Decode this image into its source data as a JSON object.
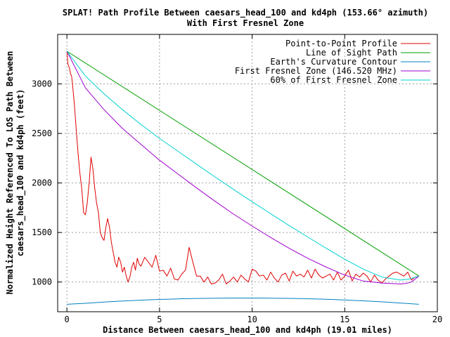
{
  "chart_data": {
    "type": "line",
    "title": "SPLAT! Path Profile Between caesars_head_100 and kd4ph (153.66° azimuth)",
    "subtitle": "With First Fresnel Zone",
    "xlabel": "Distance Between caesars_head_100 and kd4ph (19.01 miles)",
    "ylabel_lines": [
      "Normalized Height Referenced To LOS Path Between",
      "caesars_head_100 and kd4ph (feet)"
    ],
    "xlim": [
      -0.5,
      20
    ],
    "ylim": [
      700,
      3500
    ],
    "x_ticks": [
      0,
      5,
      10,
      15,
      20
    ],
    "y_ticks": [
      1000,
      1500,
      2000,
      2500,
      3000
    ],
    "grid": true,
    "legend_position": "top-right",
    "series": [
      {
        "name": "Point-to-Point Profile",
        "color": "#e00000",
        "x": [
          0,
          0.05,
          0.1,
          0.15,
          0.2,
          0.25,
          0.3,
          0.4,
          0.5,
          0.6,
          0.7,
          0.8,
          0.9,
          1.0,
          1.1,
          1.2,
          1.3,
          1.4,
          1.5,
          1.6,
          1.7,
          1.8,
          1.9,
          2.0,
          2.1,
          2.2,
          2.3,
          2.4,
          2.5,
          2.6,
          2.7,
          2.8,
          2.9,
          3.0,
          3.1,
          3.2,
          3.3,
          3.4,
          3.5,
          3.6,
          3.7,
          3.8,
          3.9,
          4.0,
          4.2,
          4.4,
          4.6,
          4.8,
          5.0,
          5.2,
          5.4,
          5.6,
          5.8,
          6.0,
          6.2,
          6.4,
          6.6,
          6.8,
          7.0,
          7.2,
          7.4,
          7.6,
          7.8,
          8.0,
          8.2,
          8.4,
          8.6,
          8.8,
          9.0,
          9.2,
          9.4,
          9.6,
          9.8,
          10.0,
          10.2,
          10.4,
          10.6,
          10.8,
          11.0,
          11.2,
          11.4,
          11.6,
          11.8,
          12.0,
          12.2,
          12.4,
          12.6,
          12.8,
          13.0,
          13.2,
          13.4,
          13.6,
          13.8,
          14.0,
          14.2,
          14.4,
          14.6,
          14.8,
          15.0,
          15.2,
          15.4,
          15.6,
          15.8,
          16.0,
          16.2,
          16.4,
          16.6,
          16.8,
          17.0,
          17.2,
          17.4,
          17.6,
          17.8,
          18.0,
          18.2,
          18.4,
          18.6,
          18.8,
          19.0
        ],
        "values": [
          3330,
          3200,
          3180,
          3150,
          3100,
          3080,
          3000,
          2800,
          2550,
          2300,
          2100,
          1950,
          1700,
          1680,
          1800,
          2000,
          2260,
          2150,
          1950,
          1800,
          1700,
          1500,
          1450,
          1420,
          1550,
          1640,
          1550,
          1400,
          1300,
          1200,
          1150,
          1250,
          1200,
          1100,
          1150,
          1060,
          1000,
          1050,
          1150,
          1200,
          1120,
          1240,
          1180,
          1160,
          1250,
          1200,
          1150,
          1270,
          1110,
          1120,
          1060,
          1140,
          1030,
          1020,
          1080,
          1120,
          1350,
          1200,
          1060,
          1060,
          1000,
          1050,
          980,
          990,
          1020,
          1080,
          980,
          1010,
          1050,
          1000,
          1070,
          1030,
          1000,
          1130,
          1110,
          1060,
          1070,
          1020,
          1100,
          1040,
          1000,
          1070,
          1090,
          1010,
          1110,
          1060,
          1080,
          1050,
          1120,
          1040,
          1130,
          1070,
          1040,
          1060,
          1080,
          1020,
          1100,
          1020,
          1060,
          1120,
          1010,
          1080,
          1050,
          1090,
          1060,
          1000,
          1070,
          1020,
          990,
          1030,
          1060,
          1090,
          1100,
          1080,
          1060,
          1100,
          1020,
          1050,
          1060
        ]
      },
      {
        "name": "Line of Sight Path",
        "color": "#00a000",
        "x": [
          0,
          19.01
        ],
        "values": [
          3330,
          1060
        ]
      },
      {
        "name": "Earth's Curvature Contour",
        "color": "#0080c0",
        "x": [
          0,
          1,
          2,
          3,
          4,
          5,
          6,
          7,
          8,
          9,
          10,
          11,
          12,
          13,
          14,
          15,
          16,
          17,
          18,
          19
        ],
        "values": [
          775,
          785,
          797,
          808,
          817,
          824,
          830,
          834,
          837,
          838,
          838,
          837,
          835,
          831,
          826,
          819,
          810,
          800,
          788,
          775
        ]
      },
      {
        "name": "First Fresnel Zone (146.520 MHz)",
        "color": "#a000d0",
        "x": [
          0,
          1,
          2,
          3,
          4,
          5,
          6,
          7,
          8,
          9,
          10,
          11,
          12,
          13,
          14,
          15,
          16,
          17,
          17.5,
          18,
          18.3,
          18.6,
          19.01
        ],
        "values": [
          3330,
          2960,
          2740,
          2550,
          2390,
          2230,
          2090,
          1950,
          1815,
          1685,
          1565,
          1450,
          1340,
          1240,
          1150,
          1070,
          1010,
          990,
          985,
          980,
          985,
          1000,
          1060
        ]
      },
      {
        "name": "60% of First Fresnel Zone",
        "color": "#00d0d0",
        "x": [
          0,
          1,
          2,
          3,
          4,
          5,
          6,
          7,
          8,
          9,
          10,
          11,
          12,
          13,
          14,
          15,
          16,
          17,
          18,
          18.5,
          19.01
        ],
        "values": [
          3330,
          3080,
          2900,
          2740,
          2590,
          2450,
          2320,
          2190,
          2060,
          1935,
          1810,
          1690,
          1570,
          1455,
          1340,
          1230,
          1130,
          1050,
          1020,
          1030,
          1060
        ]
      }
    ]
  }
}
